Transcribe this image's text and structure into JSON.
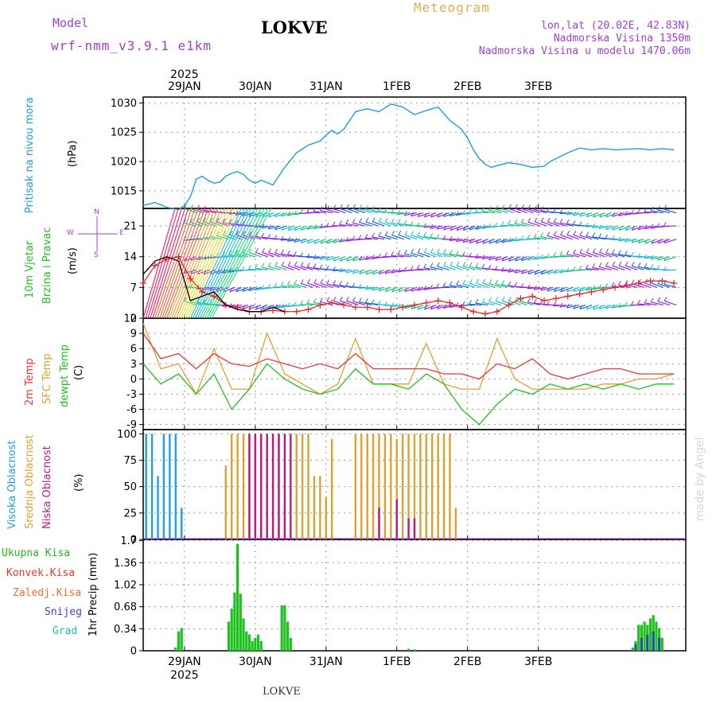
{
  "header": {
    "model_label": "Model",
    "model_name": "wrf-nmm_v3.9.1 e1km",
    "station": "LOKVE",
    "title": "Meteogram",
    "coords": "lon,lat (20.02E, 42.83N)",
    "altitude": "Nadmorska Visina 1350m",
    "model_altitude": "Nadmorska Visina u modelu 1470.06m",
    "footer_station": "LOKVE",
    "watermark": "made by Angel",
    "year": "2025"
  },
  "colors": {
    "pressure": "#1e9de0",
    "wind_speed": "#e82020",
    "gust": "#000000",
    "t2m": "#e83838",
    "sfc": "#e0a030",
    "dewpt": "#20c020",
    "high_cloud": "#1ea0e8",
    "mid_cloud": "#e0a030",
    "low_cloud": "#c01880",
    "rain_total": "#20c020",
    "conv_rain": "#e83838",
    "frz_rain": "#f07030",
    "snow": "#4040e0",
    "hail": "#20c0b0",
    "purple_text": "#a040d0"
  },
  "days": [
    "29JAN",
    "30JAN",
    "31JAN",
    "1FEB",
    "2FEB",
    "3FEB"
  ],
  "panels": {
    "pressure": {
      "label": "Pritisak na nivou mora",
      "unit": "(hPa)",
      "ticks": [
        "1015",
        "1020",
        "1025",
        "1030"
      ]
    },
    "wind": {
      "label1": "10m Vjetar",
      "label2": "Brzina i Pravac",
      "unit": "(m/s)",
      "ticks": [
        "0",
        "7",
        "14",
        "21"
      ],
      "compass_n": "N",
      "compass_s": "S",
      "compass_w": "W",
      "compass_e": "E"
    },
    "temp": {
      "label1": "2m Temp",
      "label2": "SFC Temp",
      "label3": "dewpt Temp",
      "unit": "(C)",
      "ticks": [
        "-9",
        "-6",
        "-3",
        "0",
        "3",
        "6",
        "9",
        "12"
      ]
    },
    "cloud": {
      "label1": "Visoka Oblacnost",
      "label2": "Srednja Oblacnost",
      "label3": "Niska Oblacnost",
      "unit": "(%)",
      "ticks": [
        "0",
        "25",
        "50",
        "75",
        "100"
      ]
    },
    "precip": {
      "unit": "1hr Precip (mm)",
      "ticks": [
        "0",
        "0.34",
        "0.68",
        "1.02",
        "1.36",
        "1.7"
      ],
      "legend": [
        "Ukupna Kisa",
        "Konvek.Kisa",
        "Zaledj.Kisa",
        "Snijeg",
        "Grad"
      ]
    }
  },
  "chart_data": [
    {
      "type": "line",
      "name": "pressure",
      "ylim": [
        1012,
        1031
      ],
      "x_hours": [
        0,
        4,
        8,
        12,
        14,
        16,
        18,
        20,
        22,
        24,
        26,
        28,
        30,
        32,
        34,
        36,
        38,
        40,
        44,
        48,
        52,
        56,
        60,
        62,
        64,
        66,
        68,
        70,
        72,
        76,
        80,
        84,
        88,
        92,
        96,
        100,
        104,
        108,
        110,
        112,
        114,
        116,
        118,
        120,
        124,
        128,
        132,
        136,
        138,
        140,
        144,
        148,
        152,
        156,
        160,
        164,
        168,
        172,
        176,
        180
      ],
      "values": [
        1012.5,
        1013.0,
        1012.2,
        1011.8,
        1012.5,
        1014.0,
        1017.0,
        1017.5,
        1016.8,
        1016.3,
        1016.5,
        1017.5,
        1018.0,
        1018.3,
        1017.8,
        1016.8,
        1016.3,
        1016.8,
        1016.0,
        1019.0,
        1021.5,
        1022.8,
        1023.5,
        1024.5,
        1025.3,
        1024.7,
        1025.5,
        1027.0,
        1028.5,
        1029.0,
        1028.5,
        1029.8,
        1029.3,
        1028.0,
        1028.7,
        1029.3,
        1027.0,
        1025.5,
        1024.0,
        1022.0,
        1020.5,
        1019.5,
        1019.0,
        1019.3,
        1019.8,
        1019.5,
        1019.0,
        1019.2,
        1020.0,
        1020.5,
        1021.5,
        1022.3,
        1022.0,
        1022.2,
        1022.0,
        1022.1,
        1022.2,
        1022.0,
        1022.2,
        1022.0
      ]
    },
    {
      "type": "line",
      "name": "wind",
      "ylim": [
        0,
        25
      ],
      "series": [
        {
          "name": "speed",
          "x_hours": [
            0,
            4,
            8,
            12,
            16,
            20,
            24,
            28,
            32,
            36,
            40,
            44,
            48,
            52,
            56,
            60,
            64,
            68,
            72,
            76,
            80,
            84,
            88,
            92,
            96,
            100,
            104,
            108,
            112,
            116,
            120,
            124,
            128,
            132,
            136,
            140,
            144,
            148,
            152,
            156,
            160,
            164,
            168,
            172,
            176,
            180
          ],
          "values": [
            8,
            12,
            13.5,
            14,
            9,
            6,
            5,
            3,
            2.5,
            1.5,
            1.5,
            1.8,
            1.5,
            1.5,
            2,
            3,
            3.5,
            3,
            2.5,
            2.5,
            2,
            2,
            2.5,
            3,
            3.5,
            4,
            3.5,
            2.5,
            1.5,
            1,
            1.5,
            3,
            4.5,
            5,
            4,
            4.5,
            5,
            5.5,
            6,
            6.5,
            7,
            7.5,
            8,
            8.5,
            8.5,
            8
          ]
        },
        {
          "name": "gust",
          "x_hours": [
            0,
            4,
            8,
            12,
            16,
            20,
            24,
            28,
            32,
            36,
            40,
            44,
            48
          ],
          "values": [
            10,
            13,
            14,
            13,
            4,
            5,
            6,
            3,
            2,
            1.5,
            1.5,
            2.5,
            1.5
          ]
        }
      ]
    },
    {
      "type": "line",
      "name": "temperature",
      "ylim": [
        -10,
        12
      ],
      "x_hours": [
        0,
        6,
        12,
        18,
        24,
        30,
        36,
        42,
        48,
        54,
        60,
        66,
        72,
        78,
        84,
        90,
        96,
        102,
        108,
        114,
        120,
        126,
        132,
        138,
        144,
        150,
        156,
        162,
        168,
        174,
        180
      ],
      "series": [
        {
          "name": "t2m",
          "values": [
            9,
            4,
            5,
            2,
            5,
            3,
            2.5,
            4,
            3,
            2,
            3,
            2,
            5,
            2,
            2,
            2,
            2,
            1,
            1,
            0,
            3,
            2,
            4,
            1,
            0,
            1,
            2,
            2,
            1,
            1,
            1
          ]
        },
        {
          "name": "sfc",
          "values": [
            11,
            2,
            3,
            -3,
            6,
            -2,
            -2,
            9,
            1,
            -1,
            -3,
            -1,
            8,
            -1,
            -1,
            -1,
            7,
            -1,
            -2,
            -2,
            8,
            0,
            -2,
            -2,
            -2,
            -2,
            -1,
            -1,
            0,
            0,
            1
          ]
        },
        {
          "name": "dewpt",
          "values": [
            3,
            -1,
            1,
            -3,
            1,
            -6,
            -2,
            3,
            0,
            -2,
            -3,
            -2,
            2,
            -1,
            -1,
            -2,
            1,
            -1,
            -6,
            -9,
            -5,
            -2,
            -3,
            -1,
            -2,
            -1,
            -2,
            -1,
            -2,
            -1,
            -1
          ]
        }
      ]
    },
    {
      "type": "bar",
      "name": "cloud",
      "ylim": [
        0,
        100
      ],
      "series": [
        {
          "name": "high",
          "x_hours": [
            1,
            3,
            5,
            7,
            9,
            11,
            13
          ],
          "values": [
            100,
            100,
            60,
            100,
            100,
            100,
            30
          ]
        },
        {
          "name": "mid",
          "x_hours": [
            28,
            30,
            32,
            34,
            36,
            38,
            40,
            42,
            44,
            46,
            48,
            52,
            54,
            56,
            58,
            60,
            62,
            64,
            72,
            74,
            76,
            78,
            80,
            82,
            84,
            86,
            88,
            90,
            92,
            94,
            96,
            98,
            100,
            102,
            104,
            106
          ],
          "values": [
            70,
            100,
            100,
            100,
            100,
            100,
            100,
            100,
            100,
            100,
            30,
            100,
            100,
            100,
            60,
            60,
            40,
            95,
            100,
            100,
            100,
            100,
            100,
            100,
            100,
            95,
            100,
            100,
            100,
            100,
            100,
            100,
            100,
            100,
            100,
            30
          ]
        },
        {
          "name": "low",
          "x_hours": [
            36,
            38,
            40,
            42,
            44,
            46,
            48,
            50,
            80,
            86,
            90,
            92
          ],
          "values": [
            100,
            100,
            100,
            100,
            100,
            100,
            100,
            100,
            30,
            38,
            20,
            20
          ]
        }
      ]
    },
    {
      "type": "bar",
      "name": "precipitation",
      "ylim": [
        0,
        1.7
      ],
      "series": [
        {
          "name": "total",
          "x_hours": [
            11,
            12,
            13,
            29,
            30,
            31,
            32,
            33,
            34,
            35,
            36,
            37,
            38,
            39,
            40,
            47,
            48,
            49,
            50,
            90,
            92,
            166,
            167,
            168,
            169,
            170,
            171,
            172,
            173,
            174,
            175,
            176
          ],
          "values": [
            0.05,
            0.3,
            0.35,
            0.45,
            0.65,
            0.9,
            1.65,
            0.88,
            0.5,
            0.3,
            0.25,
            0.15,
            0.2,
            0.25,
            0.15,
            0.7,
            0.7,
            0.45,
            0.2,
            0.03,
            0.02,
            0.05,
            0.15,
            0.4,
            0.4,
            0.45,
            0.4,
            0.5,
            0.55,
            0.45,
            0.35,
            0.2
          ]
        },
        {
          "name": "snow",
          "x_hours": [
            167,
            169,
            171,
            173,
            175
          ],
          "values": [
            0.1,
            0.2,
            0.25,
            0.3,
            0.2
          ]
        }
      ]
    }
  ]
}
